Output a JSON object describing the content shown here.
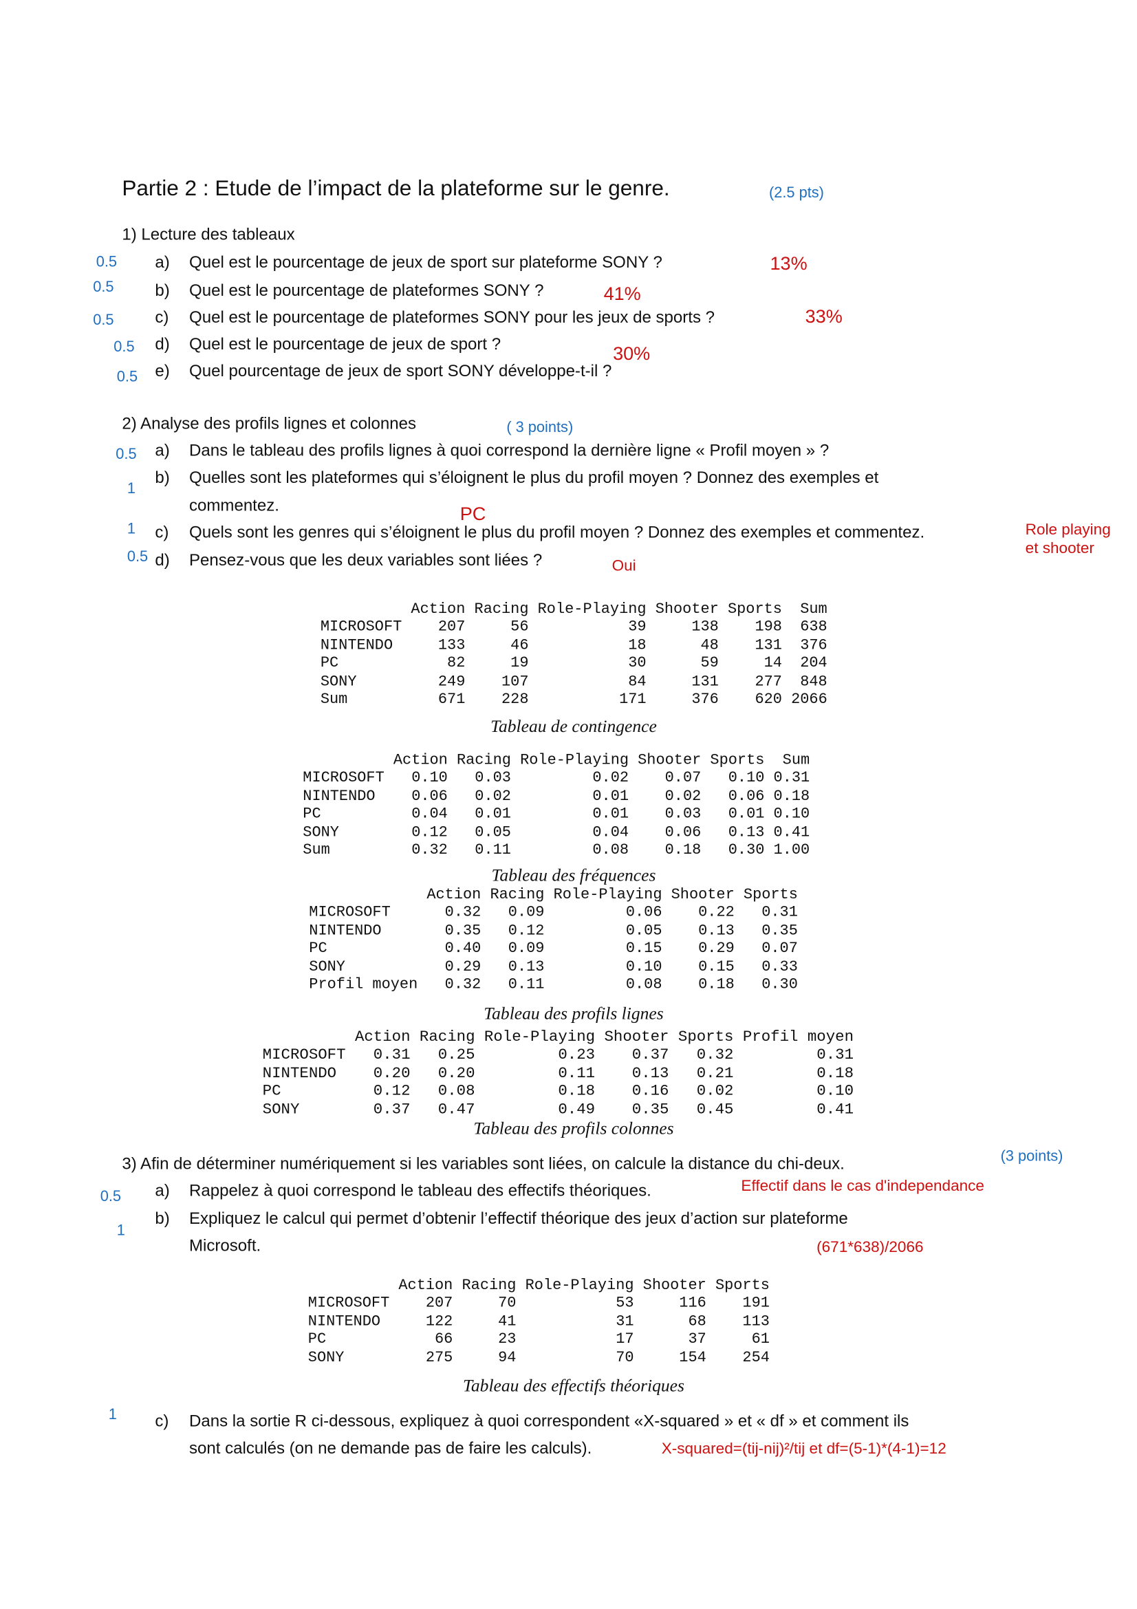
{
  "title": "Partie 2 : Etude de l’impact de la plateforme sur le genre.",
  "title_points": "(2.5 pts)",
  "section1": {
    "heading": "1)  Lecture des tableaux",
    "questions": [
      {
        "letter": "a)",
        "text": "Quel est le pourcentage de jeux de sport sur plateforme SONY ?",
        "score": "0.5",
        "answer": "13%"
      },
      {
        "letter": "b)",
        "text": "Quel est le pourcentage de plateformes SONY ?",
        "score": "0.5",
        "answer": "41%"
      },
      {
        "letter": "c)",
        "text": "Quel est le pourcentage de plateformes SONY pour les jeux de sports ?",
        "score": "0.5",
        "answer": "33%"
      },
      {
        "letter": "d)",
        "text": "Quel est le pourcentage de jeux de sport ?",
        "score": "0.5",
        "answer": "30%"
      },
      {
        "letter": "e)",
        "text": "Quel pourcentage de jeux de sport SONY développe-t-il ?",
        "score": "0.5"
      }
    ]
  },
  "section2": {
    "heading": "2)  Analyse des profils lignes et colonnes",
    "points": "( 3 points)",
    "questions": [
      {
        "letter": "a)",
        "text": "Dans le tableau des profils lignes à quoi correspond la dernière ligne « Profil moyen » ?",
        "score": "0.5"
      },
      {
        "letter": "b)",
        "text": "Quelles sont les plateformes qui s’éloignent le plus du profil moyen ? Donnez des exemples et",
        "text2": "commentez.",
        "score": "1",
        "answer": "PC"
      },
      {
        "letter": "c)",
        "text": "Quels sont les genres qui s’éloignent le plus du profil moyen ? Donnez des exemples et commentez.",
        "score": "1",
        "answer": "Role playing",
        "answer2": "et shooter"
      },
      {
        "letter": "d)",
        "text": "Pensez-vous que les deux variables sont liées ?",
        "score": "0.5",
        "answer": "Oui"
      }
    ]
  },
  "tables": [
    {
      "caption": "Tableau de contingence",
      "columns": [
        "Action",
        "Racing",
        "Role-Playing",
        "Shooter",
        "Sports",
        "Sum"
      ],
      "rows": [
        {
          "name": "MICROSOFT",
          "values": [
            "207",
            "56",
            "39",
            "138",
            "198",
            "638"
          ]
        },
        {
          "name": "NINTENDO",
          "values": [
            "133",
            "46",
            "18",
            "48",
            "131",
            "376"
          ]
        },
        {
          "name": "PC",
          "values": [
            "82",
            "19",
            "30",
            "59",
            "14",
            "204"
          ]
        },
        {
          "name": "SONY",
          "values": [
            "249",
            "107",
            "84",
            "131",
            "277",
            "848"
          ]
        },
        {
          "name": "Sum",
          "values": [
            "671",
            "228",
            "171",
            "376",
            "620",
            "2066"
          ]
        }
      ]
    },
    {
      "caption": "Tableau des fréquences",
      "columns": [
        "Action",
        "Racing",
        "Role-Playing",
        "Shooter",
        "Sports",
        "Sum"
      ],
      "rows": [
        {
          "name": "MICROSOFT",
          "values": [
            "0.10",
            "0.03",
            "0.02",
            "0.07",
            "0.10",
            "0.31"
          ]
        },
        {
          "name": "NINTENDO",
          "values": [
            "0.06",
            "0.02",
            "0.01",
            "0.02",
            "0.06",
            "0.18"
          ]
        },
        {
          "name": "PC",
          "values": [
            "0.04",
            "0.01",
            "0.01",
            "0.03",
            "0.01",
            "0.10"
          ]
        },
        {
          "name": "SONY",
          "values": [
            "0.12",
            "0.05",
            "0.04",
            "0.06",
            "0.13",
            "0.41"
          ]
        },
        {
          "name": "Sum",
          "values": [
            "0.32",
            "0.11",
            "0.08",
            "0.18",
            "0.30",
            "1.00"
          ]
        }
      ]
    },
    {
      "caption": "Tableau des profils lignes",
      "columns": [
        "Action",
        "Racing",
        "Role-Playing",
        "Shooter",
        "Sports"
      ],
      "rows": [
        {
          "name": "MICROSOFT",
          "values": [
            "0.32",
            "0.09",
            "0.06",
            "0.22",
            "0.31"
          ]
        },
        {
          "name": "NINTENDO",
          "values": [
            "0.35",
            "0.12",
            "0.05",
            "0.13",
            "0.35"
          ]
        },
        {
          "name": "PC",
          "values": [
            "0.40",
            "0.09",
            "0.15",
            "0.29",
            "0.07"
          ]
        },
        {
          "name": "SONY",
          "values": [
            "0.29",
            "0.13",
            "0.10",
            "0.15",
            "0.33"
          ]
        },
        {
          "name": "Profil moyen",
          "values": [
            "0.32",
            "0.11",
            "0.08",
            "0.18",
            "0.30"
          ]
        }
      ]
    },
    {
      "caption": "Tableau des profils colonnes",
      "columns": [
        "Action",
        "Racing",
        "Role-Playing",
        "Shooter",
        "Sports",
        "Profil moyen"
      ],
      "rows": [
        {
          "name": "MICROSOFT",
          "values": [
            "0.31",
            "0.25",
            "0.23",
            "0.37",
            "0.32",
            "0.31"
          ]
        },
        {
          "name": "NINTENDO",
          "values": [
            "0.20",
            "0.20",
            "0.11",
            "0.13",
            "0.21",
            "0.18"
          ]
        },
        {
          "name": "PC",
          "values": [
            "0.12",
            "0.08",
            "0.18",
            "0.16",
            "0.02",
            "0.10"
          ]
        },
        {
          "name": "SONY",
          "values": [
            "0.37",
            "0.47",
            "0.49",
            "0.35",
            "0.45",
            "0.41"
          ]
        }
      ]
    },
    {
      "caption": "Tableau des effectifs théoriques",
      "columns": [
        "Action",
        "Racing",
        "Role-Playing",
        "Shooter",
        "Sports"
      ],
      "rows": [
        {
          "name": "MICROSOFT",
          "values": [
            "207",
            "70",
            "53",
            "116",
            "191"
          ]
        },
        {
          "name": "NINTENDO",
          "values": [
            "122",
            "41",
            "31",
            "68",
            "113"
          ]
        },
        {
          "name": "PC",
          "values": [
            "66",
            "23",
            "17",
            "37",
            "61"
          ]
        },
        {
          "name": "SONY",
          "values": [
            "275",
            "94",
            "70",
            "154",
            "254"
          ]
        }
      ]
    }
  ],
  "section3": {
    "heading": "3)  Afin de déterminer numériquement si les variables sont liées, on calcule la distance du chi-deux.",
    "points": "(3 points)",
    "questions": [
      {
        "letter": "a)",
        "text": "Rappelez à quoi correspond le tableau des effectifs théoriques.",
        "score": "0.5",
        "answer": "Effectif dans le cas d'independance"
      },
      {
        "letter": "b)",
        "text": "Expliquez le calcul qui permet d’obtenir l’effectif théorique des jeux d’action sur plateforme",
        "text2": "Microsoft.",
        "score": "1",
        "answer": "(671*638)/2066"
      },
      {
        "letter": "c)",
        "text": "Dans la sortie R ci-dessous, expliquez à quoi correspondent «X-squared » et « df » et comment ils",
        "text2": "sont calculés (on ne demande pas de faire les calculs).",
        "score": "1",
        "answer": "X-squared=(tij-nij)²/tij et df=(5-1)*(4-1)=12"
      }
    ]
  },
  "colors": {
    "score": "#1f6fc0",
    "answer": "#cc1111",
    "text": "#111111"
  }
}
